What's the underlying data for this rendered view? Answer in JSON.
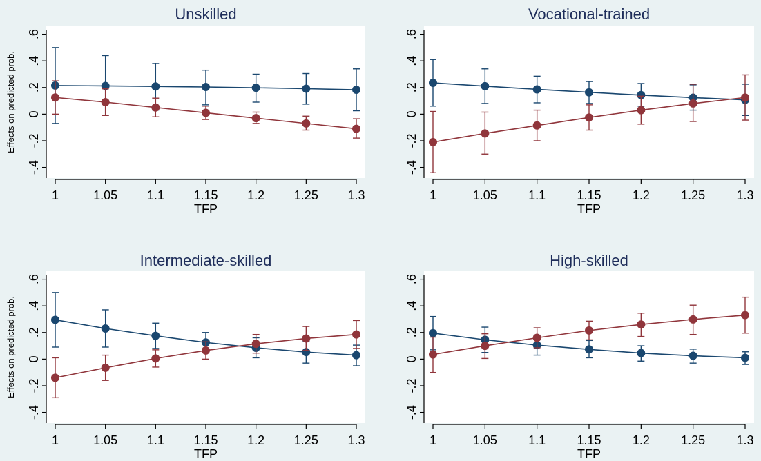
{
  "figure": {
    "background": "#eaf2f3",
    "plot_background": "#ffffff"
  },
  "colors": {
    "series_blue": "#1a476f",
    "series_red": "#90353b",
    "text": "#000000",
    "title": "#1e2d5a"
  },
  "chart_data": [
    {
      "type": "line",
      "title": "Unskilled",
      "xlabel": "TFP",
      "ylabel": "Effects on predicted prob.",
      "x": [
        1,
        1.05,
        1.1,
        1.15,
        1.2,
        1.25,
        1.3
      ],
      "x_tick_labels": [
        "1",
        "1.05",
        "1.1",
        "1.15",
        "1.2",
        "1.25",
        "1.3"
      ],
      "y_ticks": [
        -0.4,
        -0.2,
        0,
        0.2,
        0.4,
        0.6
      ],
      "y_tick_labels": [
        "-.4",
        "-.2",
        "0",
        ".2",
        ".4",
        ".6"
      ],
      "ylim": [
        -0.48,
        0.66
      ],
      "grid": false,
      "series": [
        {
          "color": "#1a476f",
          "values": [
            0.215,
            0.212,
            0.208,
            0.204,
            0.198,
            0.191,
            0.183
          ],
          "lower": [
            -0.07,
            -0.01,
            0.03,
            0.07,
            0.09,
            0.075,
            0.025
          ],
          "upper": [
            0.5,
            0.44,
            0.38,
            0.33,
            0.3,
            0.305,
            0.34
          ]
        },
        {
          "color": "#90353b",
          "values": [
            0.125,
            0.09,
            0.05,
            0.01,
            -0.03,
            -0.07,
            -0.11
          ],
          "lower": [
            0.0,
            -0.01,
            -0.02,
            -0.04,
            -0.07,
            -0.12,
            -0.18
          ],
          "upper": [
            0.25,
            0.19,
            0.12,
            0.06,
            0.015,
            -0.015,
            -0.035
          ]
        }
      ]
    },
    {
      "type": "line",
      "title": "Vocational-trained",
      "xlabel": "TFP",
      "ylabel": "",
      "x": [
        1,
        1.05,
        1.1,
        1.15,
        1.2,
        1.25,
        1.3
      ],
      "x_tick_labels": [
        "1",
        "1.05",
        "1.1",
        "1.15",
        "1.2",
        "1.25",
        "1.3"
      ],
      "y_ticks": [
        -0.4,
        -0.2,
        0,
        0.2,
        0.4,
        0.6
      ],
      "y_tick_labels": [
        "-.4",
        "-.2",
        "0",
        ".2",
        ".4",
        ".6"
      ],
      "ylim": [
        -0.48,
        0.66
      ],
      "grid": false,
      "series": [
        {
          "color": "#1a476f",
          "values": [
            0.235,
            0.21,
            0.186,
            0.164,
            0.143,
            0.124,
            0.107
          ],
          "lower": [
            0.06,
            0.08,
            0.085,
            0.08,
            0.06,
            0.03,
            -0.01
          ],
          "upper": [
            0.41,
            0.34,
            0.285,
            0.245,
            0.23,
            0.22,
            0.225
          ]
        },
        {
          "color": "#90353b",
          "values": [
            -0.21,
            -0.145,
            -0.085,
            -0.025,
            0.03,
            0.08,
            0.125
          ],
          "lower": [
            -0.44,
            -0.3,
            -0.2,
            -0.12,
            -0.075,
            -0.055,
            -0.045
          ],
          "upper": [
            0.02,
            0.015,
            0.03,
            0.07,
            0.135,
            0.225,
            0.295
          ]
        }
      ]
    },
    {
      "type": "line",
      "title": "Intermediate-skilled",
      "xlabel": "TFP",
      "ylabel": "Effects on predicted prob.",
      "x": [
        1,
        1.05,
        1.1,
        1.15,
        1.2,
        1.25,
        1.3
      ],
      "x_tick_labels": [
        "1",
        "1.05",
        "1.1",
        "1.15",
        "1.2",
        "1.25",
        "1.3"
      ],
      "y_ticks": [
        -0.4,
        -0.2,
        0,
        0.2,
        0.4,
        0.6
      ],
      "y_tick_labels": [
        "-.4",
        "-.2",
        "0",
        ".2",
        ".4",
        ".6"
      ],
      "ylim": [
        -0.48,
        0.66
      ],
      "grid": false,
      "series": [
        {
          "color": "#1a476f",
          "values": [
            0.295,
            0.23,
            0.175,
            0.125,
            0.085,
            0.053,
            0.03
          ],
          "lower": [
            0.09,
            0.09,
            0.08,
            0.05,
            0.01,
            -0.03,
            -0.05
          ],
          "upper": [
            0.5,
            0.37,
            0.27,
            0.2,
            0.16,
            0.135,
            0.105
          ]
        },
        {
          "color": "#90353b",
          "values": [
            -0.14,
            -0.065,
            0.005,
            0.065,
            0.115,
            0.155,
            0.185
          ],
          "lower": [
            -0.29,
            -0.16,
            -0.06,
            0.0,
            0.045,
            0.065,
            0.08
          ],
          "upper": [
            0.01,
            0.03,
            0.07,
            0.13,
            0.185,
            0.245,
            0.29
          ]
        }
      ]
    },
    {
      "type": "line",
      "title": "High-skilled",
      "xlabel": "TFP",
      "ylabel": "",
      "x": [
        1,
        1.05,
        1.1,
        1.15,
        1.2,
        1.25,
        1.3
      ],
      "x_tick_labels": [
        "1",
        "1.05",
        "1.1",
        "1.15",
        "1.2",
        "1.25",
        "1.3"
      ],
      "y_ticks": [
        -0.4,
        -0.2,
        0,
        0.2,
        0.4,
        0.6
      ],
      "y_tick_labels": [
        "-.4",
        "-.2",
        "0",
        ".2",
        ".4",
        ".6"
      ],
      "ylim": [
        -0.48,
        0.66
      ],
      "grid": false,
      "series": [
        {
          "color": "#1a476f",
          "values": [
            0.195,
            0.145,
            0.105,
            0.073,
            0.045,
            0.025,
            0.01
          ],
          "lower": [
            0.07,
            0.05,
            0.03,
            0.01,
            -0.015,
            -0.03,
            -0.04
          ],
          "upper": [
            0.32,
            0.24,
            0.18,
            0.14,
            0.1,
            0.075,
            0.055
          ]
        },
        {
          "color": "#90353b",
          "values": [
            0.035,
            0.1,
            0.16,
            0.215,
            0.26,
            0.298,
            0.33
          ],
          "lower": [
            -0.1,
            0.005,
            0.085,
            0.145,
            0.17,
            0.185,
            0.195
          ],
          "upper": [
            0.165,
            0.19,
            0.235,
            0.285,
            0.345,
            0.405,
            0.465
          ]
        }
      ]
    }
  ]
}
